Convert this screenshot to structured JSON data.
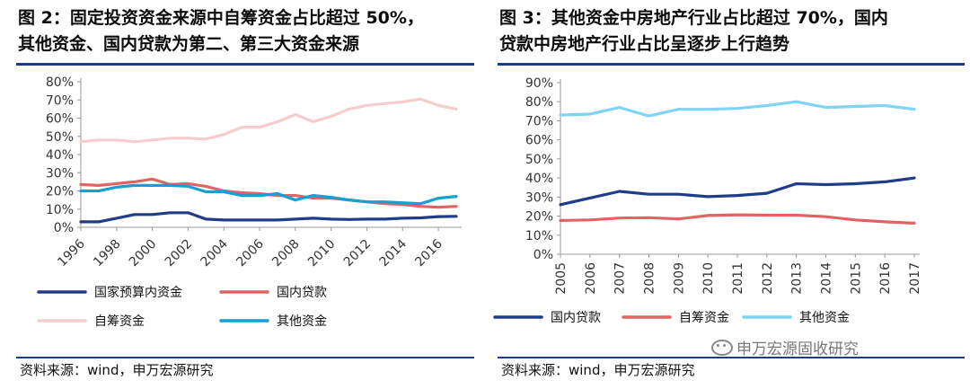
{
  "charts": [
    {
      "title": "图 2：固定投资资金来源中自筹资金占比超过 50%，\n其他资金、国内贷款为第二、第三大资金来源",
      "source": "资料来源：wind，申万宏源研究"
    },
    {
      "title": "图  3：其他资金中房地产行业占比超过  70%，国内\n贷款中房地产行业占比呈逐步上行趋势",
      "source": "资料来源：wind，申万宏源研究"
    }
  ],
  "watermark": {
    "text": "申万宏源固收研究",
    "icon": "wechat-icon"
  },
  "chart_data": [
    {
      "type": "line",
      "x": [
        1996,
        1997,
        1998,
        1999,
        2000,
        2001,
        2002,
        2003,
        2004,
        2005,
        2006,
        2007,
        2008,
        2009,
        2010,
        2011,
        2012,
        2013,
        2014,
        2015,
        2016,
        2017
      ],
      "x_tick_labels": [
        "1996",
        "1998",
        "2000",
        "2002",
        "2004",
        "2006",
        "2008",
        "2010",
        "2012",
        "2014",
        "2016"
      ],
      "y_tick_labels": [
        "0%",
        "10%",
        "20%",
        "30%",
        "40%",
        "50%",
        "60%",
        "70%",
        "80%"
      ],
      "ylim": [
        0,
        80
      ],
      "legend_position": "bottom",
      "series": [
        {
          "name": "国家预算内资金",
          "color": "#1f3c88",
          "values": [
            3,
            3,
            5,
            7,
            7,
            8,
            8,
            4.5,
            4,
            4,
            4,
            4,
            4.5,
            5,
            4.5,
            4.3,
            4.5,
            4.5,
            5,
            5.2,
            5.9,
            6
          ]
        },
        {
          "name": "国内贷款",
          "color": "#e06464",
          "values": [
            23.5,
            23,
            24,
            25,
            26.5,
            23.5,
            24,
            22.5,
            20,
            19,
            18.5,
            17.5,
            17.5,
            16,
            16,
            15,
            14,
            13,
            12.5,
            11.5,
            11,
            11.5
          ]
        },
        {
          "name": "自筹资金",
          "color": "#f6cccc",
          "values": [
            47,
            48,
            48,
            47,
            48,
            49,
            49,
            48.5,
            51,
            55,
            55,
            58,
            62,
            58,
            61,
            65,
            67,
            68,
            69,
            70.5,
            67,
            65
          ]
        },
        {
          "name": "其他资金",
          "color": "#14a0d2",
          "values": [
            20,
            20,
            22,
            23,
            23,
            23,
            22.5,
            19.5,
            19.5,
            17.5,
            17.5,
            18.5,
            15,
            17.5,
            16.5,
            15,
            14,
            14,
            13.5,
            13,
            16,
            17
          ]
        }
      ]
    },
    {
      "type": "line",
      "x": [
        2005,
        2006,
        2007,
        2008,
        2009,
        2010,
        2011,
        2012,
        2013,
        2014,
        2015,
        2016,
        2017
      ],
      "x_tick_labels": [
        "2005",
        "2006",
        "2007",
        "2008",
        "2009",
        "2010",
        "2011",
        "2012",
        "2013",
        "2014",
        "2015",
        "2016",
        "2017"
      ],
      "y_tick_labels": [
        "0%",
        "10%",
        "20%",
        "30%",
        "40%",
        "50%",
        "60%",
        "70%",
        "80%",
        "90%"
      ],
      "ylim": [
        0,
        90
      ],
      "legend_position": "bottom",
      "series": [
        {
          "name": "国内贷款",
          "color": "#1f3c88",
          "values": [
            26,
            29.5,
            33,
            31.5,
            31.5,
            30.2,
            30.8,
            32,
            37,
            36.5,
            37,
            38,
            40
          ]
        },
        {
          "name": "自筹资金",
          "color": "#e06464",
          "values": [
            17.7,
            18,
            19,
            19.2,
            18.5,
            20.3,
            20.7,
            20.5,
            20.5,
            19.7,
            18,
            17,
            16.3
          ]
        },
        {
          "name": "其他资金",
          "color": "#7fd3f3",
          "values": [
            73,
            73.5,
            77,
            72.5,
            76,
            76,
            76.5,
            78,
            80,
            77,
            77.5,
            78,
            76
          ]
        }
      ]
    }
  ]
}
